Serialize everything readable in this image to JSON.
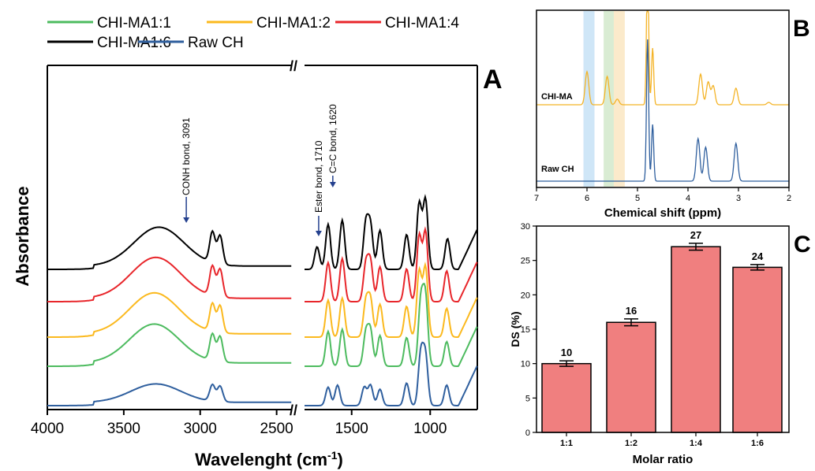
{
  "panels": {
    "A": {
      "label": "A",
      "legend": [
        {
          "name": "CHI-MA1:1",
          "color": "#4dbb5f"
        },
        {
          "name": "CHI-MA1:2",
          "color": "#fbb91e"
        },
        {
          "name": "CHI-MA1:4",
          "color": "#e8262b"
        },
        {
          "name": "CHI-MA1:6",
          "color": "#000000"
        },
        {
          "name": "Raw CH",
          "color": "#2f5f9e"
        }
      ],
      "ylabel": "Absorbance",
      "xlabel": "Wavelenght (cm",
      "xlabel_sup": "-1",
      "xlabel_tail": ")",
      "annotations": [
        {
          "text": "CONH bond, 3091",
          "x": 3091
        },
        {
          "text": "Ester bond, 1710",
          "x": 1710
        },
        {
          "text": "C=C bond, 1620",
          "x": 1620
        }
      ],
      "xticks": [
        "4000",
        "3500",
        "3000",
        "2500",
        "1500",
        "1000"
      ],
      "break_symbol": "//"
    },
    "B": {
      "label": "B",
      "xlabel": "Chemical shift (ppm)",
      "xticks": [
        "7",
        "6",
        "5",
        "4",
        "3",
        "2"
      ],
      "traces": [
        {
          "name": "CHI-MA",
          "color": "#f4b326"
        },
        {
          "name": "Raw CH",
          "color": "#2f5f9e"
        }
      ],
      "bands": [
        {
          "ppm": 6.0,
          "color": "#cfe6f7"
        },
        {
          "ppm": 5.6,
          "color": "#d9ecd3"
        },
        {
          "ppm": 5.4,
          "color": "#fbeacb"
        }
      ]
    },
    "C": {
      "label": "C"
    }
  },
  "chart_data": [
    {
      "type": "line",
      "title": "",
      "xlabel": "Wavelenght (cm-1)",
      "ylabel": "Absorbance",
      "xlim": [
        4000,
        700
      ],
      "x_break": [
        2400,
        1800
      ],
      "series": [
        {
          "name": "CHI-MA1:6",
          "color": "#000000",
          "offset": 4,
          "peaks": [
            [
              3270,
              0.95
            ],
            [
              2920,
              0.75
            ],
            [
              2870,
              0.7
            ],
            [
              1720,
              0.55
            ],
            [
              1650,
              1.1
            ],
            [
              1560,
              1.2
            ],
            [
              1410,
              1.1
            ],
            [
              1380,
              1.05
            ],
            [
              1320,
              0.95
            ],
            [
              1150,
              0.85
            ],
            [
              1070,
              1.6
            ],
            [
              1030,
              1.7
            ],
            [
              890,
              0.75
            ]
          ]
        },
        {
          "name": "CHI-MA1:4",
          "color": "#e8262b",
          "offset": 3,
          "peaks": [
            [
              3290,
              1.0
            ],
            [
              2920,
              0.72
            ],
            [
              2870,
              0.68
            ],
            [
              1650,
              0.95
            ],
            [
              1560,
              1.05
            ],
            [
              1410,
              0.9
            ],
            [
              1380,
              0.95
            ],
            [
              1320,
              0.85
            ],
            [
              1150,
              0.8
            ],
            [
              1070,
              1.6
            ],
            [
              1030,
              1.7
            ],
            [
              895,
              0.75
            ]
          ]
        },
        {
          "name": "CHI-MA1:2",
          "color": "#fbb91e",
          "offset": 2,
          "peaks": [
            [
              3300,
              1.0
            ],
            [
              2920,
              0.68
            ],
            [
              2870,
              0.66
            ],
            [
              1650,
              0.9
            ],
            [
              1560,
              0.95
            ],
            [
              1410,
              0.85
            ],
            [
              1380,
              0.9
            ],
            [
              1320,
              0.8
            ],
            [
              1150,
              0.75
            ],
            [
              1070,
              1.6
            ],
            [
              1030,
              1.7
            ],
            [
              895,
              0.7
            ]
          ]
        },
        {
          "name": "CHI-MA1:1",
          "color": "#4dbb5f",
          "offset": 1,
          "peaks": [
            [
              3300,
              0.95
            ],
            [
              2920,
              0.65
            ],
            [
              2870,
              0.62
            ],
            [
              1650,
              0.85
            ],
            [
              1560,
              0.9
            ],
            [
              1410,
              0.8
            ],
            [
              1380,
              0.85
            ],
            [
              1320,
              0.75
            ],
            [
              1150,
              0.7
            ],
            [
              1060,
              1.55
            ],
            [
              1030,
              1.65
            ],
            [
              895,
              0.6
            ]
          ]
        },
        {
          "name": "Raw CH",
          "color": "#2f5f9e",
          "offset": 0,
          "peaks": [
            [
              3290,
              0.45
            ],
            [
              2920,
              0.4
            ],
            [
              2870,
              0.38
            ],
            [
              1650,
              0.45
            ],
            [
              1590,
              0.5
            ],
            [
              1420,
              0.45
            ],
            [
              1380,
              0.5
            ],
            [
              1320,
              0.4
            ],
            [
              1150,
              0.55
            ],
            [
              1060,
              1.25
            ],
            [
              1030,
              1.2
            ],
            [
              895,
              0.5
            ]
          ]
        }
      ]
    },
    {
      "type": "line",
      "title": "",
      "xlabel": "Chemical shift (ppm)",
      "xlim": [
        7,
        2
      ],
      "series": [
        {
          "name": "CHI-MA",
          "color": "#f4b326",
          "peaks": [
            [
              6.0,
              0.7
            ],
            [
              5.6,
              0.6
            ],
            [
              5.4,
              0.12
            ],
            [
              4.8,
              3.0
            ],
            [
              4.7,
              1.2
            ],
            [
              3.75,
              0.65
            ],
            [
              3.6,
              0.48
            ],
            [
              3.5,
              0.4
            ],
            [
              3.05,
              0.35
            ],
            [
              2.4,
              0.05
            ]
          ]
        },
        {
          "name": "Raw CH",
          "color": "#2f5f9e",
          "peaks": [
            [
              4.8,
              3.0
            ],
            [
              4.7,
              1.2
            ],
            [
              3.8,
              0.9
            ],
            [
              3.65,
              0.72
            ],
            [
              3.05,
              0.8
            ]
          ]
        }
      ]
    },
    {
      "type": "bar",
      "title": "",
      "xlabel": "Molar ratio",
      "ylabel": "DS (%)",
      "categories": [
        "1:1",
        "1:2",
        "1:4",
        "1:6"
      ],
      "values": [
        10,
        16,
        27,
        24
      ],
      "errors": [
        0.4,
        0.5,
        0.5,
        0.4
      ],
      "ylim": [
        0,
        30
      ],
      "yticks": [
        0,
        5,
        10,
        15,
        20,
        25,
        30
      ],
      "bar_color": "#f07f7f"
    }
  ]
}
